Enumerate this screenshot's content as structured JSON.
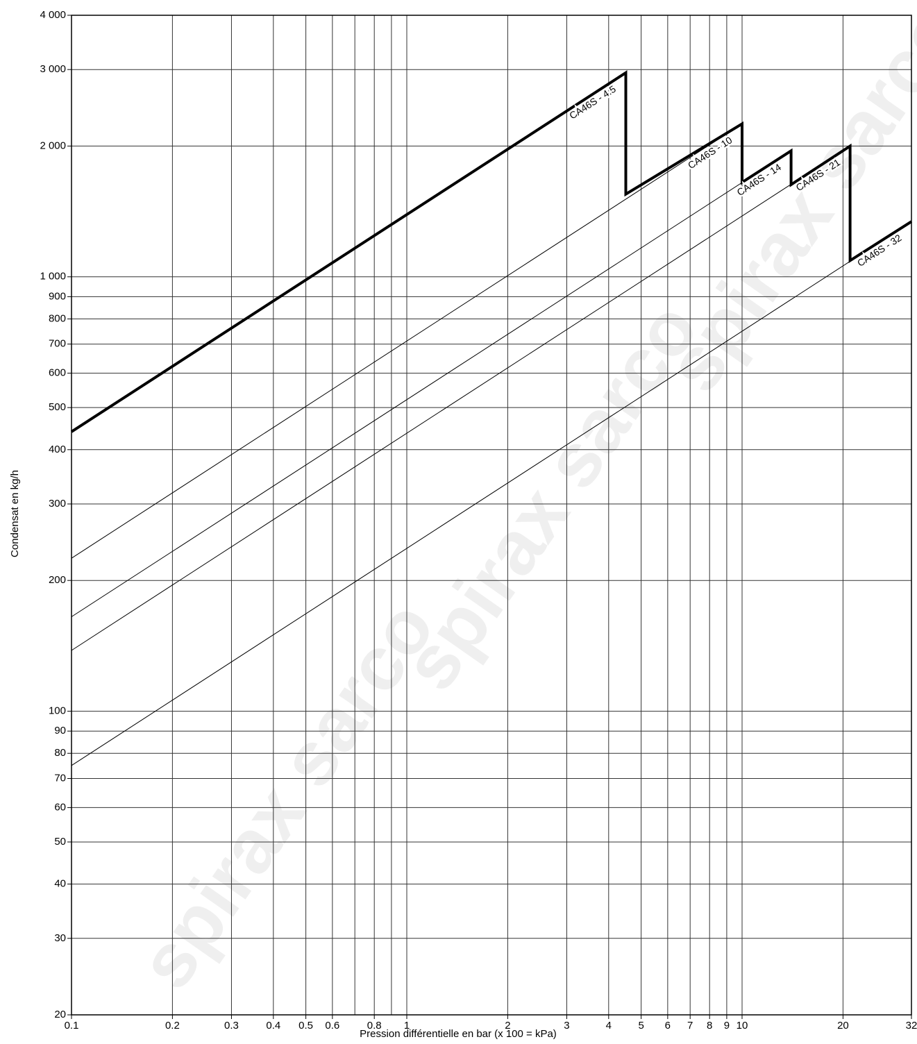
{
  "chart_data": {
    "type": "line",
    "x_label": "Pression différentielle en bar (x 100 = kPa)",
    "y_label": "Condensat en kg/h",
    "watermark": "spirax sarco",
    "log_x": true,
    "log_y": true,
    "grid": true,
    "xlim": [
      0.1,
      32
    ],
    "ylim": [
      20,
      4000
    ],
    "xticks": [
      0.1,
      0.2,
      0.3,
      0.4,
      0.5,
      0.6,
      0.8,
      1,
      2,
      3,
      4,
      5,
      6,
      7,
      8,
      9,
      10,
      20,
      32
    ],
    "xgrid_minor": [
      0.7,
      0.9
    ],
    "yticks": [
      20,
      30,
      40,
      50,
      60,
      70,
      80,
      90,
      100,
      200,
      300,
      400,
      500,
      600,
      700,
      800,
      900,
      {
        "value": 1000,
        "label": "1 000"
      },
      {
        "value": 2000,
        "label": "2 000"
      },
      {
        "value": 3000,
        "label": "3 000"
      },
      {
        "value": 4000,
        "label": "4 000"
      }
    ],
    "series": [
      {
        "name": "CA46S - 4.5",
        "color": "#000000",
        "x": [
          0.1,
          4.5
        ],
        "values": [
          440,
          2950
        ]
      },
      {
        "name": "CA46S - 10",
        "color": "#000000",
        "x": [
          0.1,
          10
        ],
        "values": [
          225,
          2250
        ]
      },
      {
        "name": "CA46S - 14",
        "color": "#000000",
        "x": [
          0.1,
          14
        ],
        "values": [
          165,
          1950
        ]
      },
      {
        "name": "CA46S - 21",
        "color": "#000000",
        "x": [
          0.1,
          21
        ],
        "values": [
          138,
          2000
        ]
      },
      {
        "name": "CA46S - 32",
        "color": "#000000",
        "x": [
          0.1,
          32
        ],
        "values": [
          75,
          1340
        ]
      }
    ],
    "envelope": {
      "color": "#000000",
      "x": [
        0.1,
        4.5,
        4.5,
        10,
        10,
        14,
        14,
        21,
        21,
        32
      ],
      "values": [
        440,
        2950,
        1550,
        2250,
        1650,
        1950,
        1630,
        2000,
        1090,
        1340
      ]
    }
  }
}
